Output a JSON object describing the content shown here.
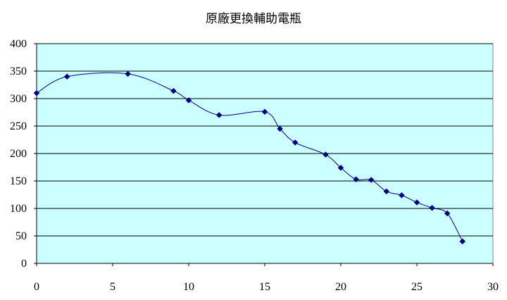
{
  "chart_data": {
    "type": "line",
    "title": "原廠更換輔助電瓶",
    "xlabel": "",
    "ylabel": "",
    "xlim": [
      0,
      30
    ],
    "ylim": [
      0,
      400
    ],
    "xticks": [
      0,
      5,
      10,
      15,
      20,
      25,
      30
    ],
    "yticks": [
      0,
      50,
      100,
      150,
      200,
      250,
      300,
      350,
      400
    ],
    "grid": "horizontal",
    "smooth": true,
    "legend": "none",
    "colors": {
      "plot_background": "#ccffff",
      "line": "#000080",
      "marker": "#000080",
      "gridline": "#000000"
    },
    "series": [
      {
        "x": [
          0,
          2,
          6,
          9,
          10,
          12,
          15,
          16,
          17,
          19,
          20,
          21,
          22,
          23,
          24,
          25,
          26,
          27,
          28
        ],
        "values": [
          310,
          340,
          345,
          314,
          297,
          270,
          276,
          245,
          220,
          198,
          174,
          153,
          152,
          131,
          124,
          111,
          101,
          91,
          40
        ]
      }
    ]
  }
}
